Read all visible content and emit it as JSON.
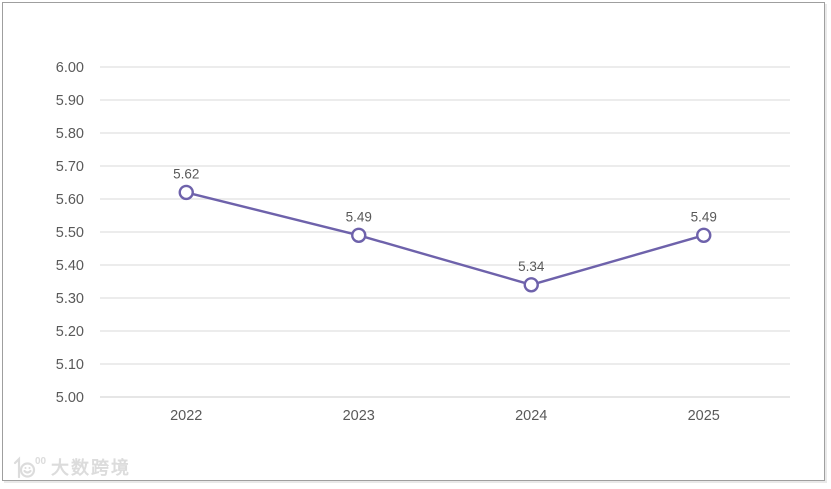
{
  "frame": {
    "border_color": "#9f9f9f",
    "background": "#ffffff"
  },
  "chart_data": {
    "type": "line",
    "title": "",
    "xlabel": "",
    "ylabel": "",
    "categories": [
      "2022",
      "2023",
      "2024",
      "2025"
    ],
    "values": [
      5.62,
      5.49,
      5.34,
      5.49
    ],
    "data_labels": [
      "5.62",
      "5.49",
      "5.34",
      "5.49"
    ],
    "ylim": [
      5.0,
      6.0
    ],
    "ytick_step": 0.1,
    "ytick_labels_top_to_bottom": [
      "6.00",
      "5.90",
      "5.80",
      "5.70",
      "5.60",
      "5.50",
      "5.40",
      "5.30",
      "5.20",
      "5.10",
      "5.00"
    ],
    "grid": true,
    "legend": "none",
    "line_color": "#6e62ab",
    "marker_style": "open-circle",
    "marker_fill": "#ffffff",
    "gridline_color": "#e6e6e6",
    "bottom_gridline_color": "#dedede",
    "text_color": "#595959"
  },
  "watermark": {
    "logo_icon": "smiley-100-logo-icon",
    "brand_text": "大数跨境",
    "color": "#dcdcdc"
  }
}
